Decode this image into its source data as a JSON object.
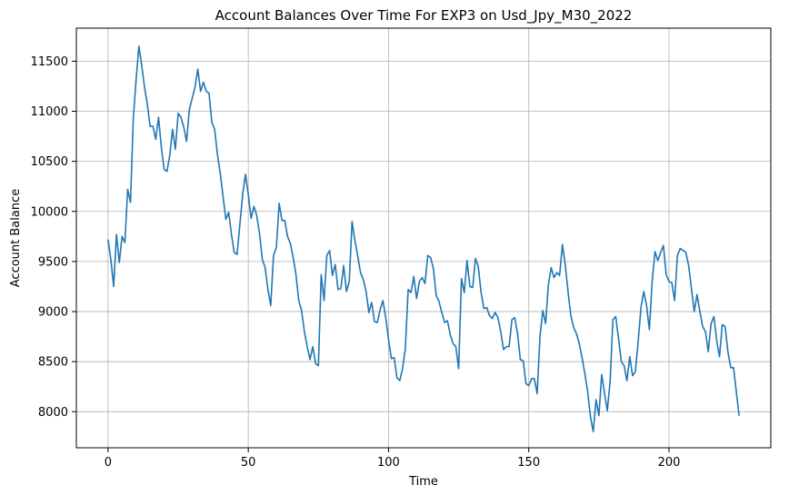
{
  "chart_data": {
    "type": "line",
    "title": "Account Balances Over Time For EXP3 on Usd_Jpy_M30_2022",
    "xlabel": "Time",
    "ylabel": "Account Balance",
    "xlim": [
      -11.3,
      236.3
    ],
    "ylim": [
      7640,
      11830
    ],
    "xticks": [
      0,
      50,
      100,
      150,
      200
    ],
    "yticks": [
      8000,
      8500,
      9000,
      9500,
      10000,
      10500,
      11000,
      11500
    ],
    "grid": true,
    "line_color": "#1f77b4",
    "series": [
      {
        "values": [
          9720,
          9520,
          9250,
          9770,
          9490,
          9750,
          9690,
          10220,
          10090,
          10930,
          11310,
          11650,
          11460,
          11240,
          11070,
          10850,
          10850,
          10720,
          10940,
          10640,
          10420,
          10400,
          10560,
          10820,
          10620,
          10980,
          10940,
          10840,
          10700,
          11020,
          11130,
          11240,
          11420,
          11200,
          11290,
          11200,
          11180,
          10890,
          10820,
          10570,
          10380,
          10150,
          9920,
          9990,
          9770,
          9590,
          9570,
          9870,
          10170,
          10370,
          10170,
          9930,
          10050,
          9960,
          9780,
          9520,
          9440,
          9220,
          9060,
          9560,
          9640,
          10080,
          9910,
          9910,
          9750,
          9680,
          9540,
          9370,
          9110,
          9010,
          8800,
          8650,
          8520,
          8650,
          8480,
          8460,
          9370,
          9110,
          9560,
          9610,
          9360,
          9470,
          9220,
          9230,
          9460,
          9200,
          9300,
          9900,
          9710,
          9560,
          9390,
          9320,
          9200,
          8990,
          9090,
          8900,
          8890,
          9020,
          9110,
          8940,
          8720,
          8530,
          8540,
          8340,
          8310,
          8430,
          8630,
          9220,
          9190,
          9350,
          9130,
          9300,
          9340,
          9280,
          9560,
          9540,
          9430,
          9160,
          9100,
          8990,
          8890,
          8910,
          8770,
          8680,
          8650,
          8430,
          9330,
          9190,
          9510,
          9250,
          9240,
          9530,
          9450,
          9190,
          9030,
          9040,
          8960,
          8930,
          8990,
          8940,
          8800,
          8620,
          8650,
          8650,
          8920,
          8940,
          8780,
          8520,
          8510,
          8280,
          8260,
          8330,
          8330,
          8180,
          8750,
          9010,
          8880,
          9270,
          9440,
          9340,
          9390,
          9360,
          9670,
          9470,
          9200,
          8960,
          8840,
          8780,
          8680,
          8540,
          8380,
          8200,
          7950,
          7800,
          8120,
          7960,
          8370,
          8190,
          8010,
          8300,
          8920,
          8950,
          8730,
          8500,
          8460,
          8310,
          8550,
          8360,
          8400,
          8700,
          9040,
          9200,
          9060,
          8820,
          9300,
          9600,
          9510,
          9590,
          9660,
          9370,
          9300,
          9290,
          9110,
          9560,
          9630,
          9610,
          9590,
          9460,
          9230,
          9000,
          9170,
          9000,
          8850,
          8800,
          8600,
          8880,
          8950,
          8710,
          8550,
          8870,
          8850,
          8600,
          8440,
          8440,
          8200,
          7960
        ]
      }
    ]
  }
}
